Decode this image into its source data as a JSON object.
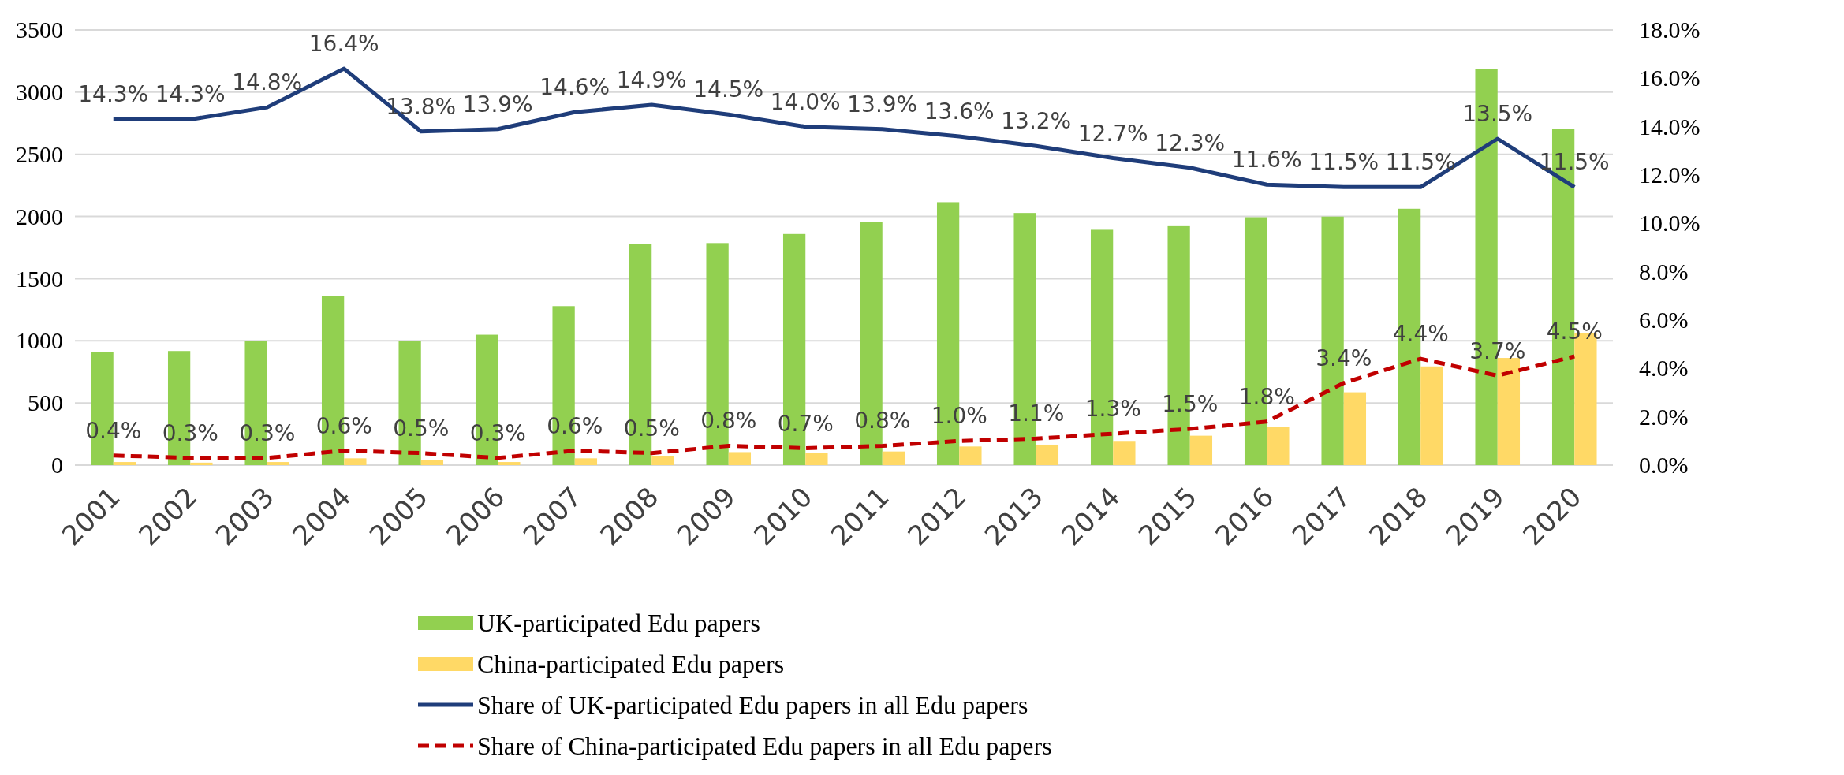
{
  "chart_data": {
    "type": "bar",
    "categories": [
      "2001",
      "2002",
      "2003",
      "2004",
      "2005",
      "2006",
      "2007",
      "2008",
      "2009",
      "2010",
      "2011",
      "2012",
      "2013",
      "2014",
      "2015",
      "2016",
      "2017",
      "2018",
      "2019",
      "2020"
    ],
    "series": [
      {
        "name": "UK-participated Edu papers",
        "color": "#92d050",
        "values": [
          908,
          918,
          1000,
          1357,
          996,
          1049,
          1279,
          1781,
          1786,
          1859,
          1956,
          2115,
          2028,
          1893,
          1922,
          1994,
          1999,
          2062,
          3185,
          2706
        ]
      },
      {
        "name": "China-participated Edu papers",
        "color": "#ffd966",
        "values": [
          25,
          20,
          25,
          55,
          40,
          25,
          55,
          70,
          105,
          95,
          110,
          150,
          165,
          195,
          237,
          310,
          586,
          794,
          862,
          1065
        ]
      },
      {
        "name": "Share of UK-participated Edu papers in all Edu papers",
        "type": "line",
        "axis": "y2",
        "color": "#1f3d7a",
        "line_style": "solid",
        "values": [
          14.3,
          14.3,
          14.8,
          16.4,
          13.8,
          13.9,
          14.6,
          14.9,
          14.5,
          14.0,
          13.9,
          13.6,
          13.2,
          12.7,
          12.3,
          11.6,
          11.5,
          11.5,
          13.5,
          11.5
        ],
        "value_labels": [
          "14.3%",
          "14.3%",
          "14.8%",
          "16.4%",
          "13.8%",
          "13.9%",
          "14.6%",
          "14.9%",
          "14.5%",
          "14.0%",
          "13.9%",
          "13.6%",
          "13.2%",
          "12.7%",
          "12.3%",
          "11.6%",
          "11.5%",
          "11.5%",
          "13.5%",
          "11.5%"
        ]
      },
      {
        "name": "Share of China-participated Edu papers in all Edu papers",
        "type": "line",
        "axis": "y2",
        "color": "#c00000",
        "line_style": "dashed",
        "values": [
          0.4,
          0.3,
          0.3,
          0.6,
          0.5,
          0.3,
          0.6,
          0.5,
          0.8,
          0.7,
          0.8,
          1.0,
          1.1,
          1.3,
          1.5,
          1.8,
          3.4,
          4.4,
          3.7,
          4.5
        ],
        "value_labels": [
          "0.4%",
          "0.3%",
          "0.3%",
          "0.6%",
          "0.5%",
          "0.3%",
          "0.6%",
          "0.5%",
          "0.8%",
          "0.7%",
          "0.8%",
          "1.0%",
          "1.1%",
          "1.3%",
          "1.5%",
          "1.8%",
          "3.4%",
          "4.4%",
          "3.7%",
          "4.5%"
        ]
      }
    ],
    "ylim": [
      0,
      3500
    ],
    "yticks": [
      0,
      500,
      1000,
      1500,
      2000,
      2500,
      3000,
      3500
    ],
    "y2lim": [
      0,
      18
    ],
    "y2ticks": [
      {
        "value": 0,
        "label": "0.0%"
      },
      {
        "value": 2,
        "label": "2.0%"
      },
      {
        "value": 4,
        "label": "4.0%"
      },
      {
        "value": 6,
        "label": "6.0%"
      },
      {
        "value": 8,
        "label": "8.0%"
      },
      {
        "value": 10,
        "label": "10.0%"
      },
      {
        "value": 12,
        "label": "12.0%"
      },
      {
        "value": 14,
        "label": "14.0%"
      },
      {
        "value": 16,
        "label": "16.0%"
      },
      {
        "value": 18,
        "label": "18.0%"
      }
    ],
    "grid": "y",
    "legend": "bottom"
  }
}
